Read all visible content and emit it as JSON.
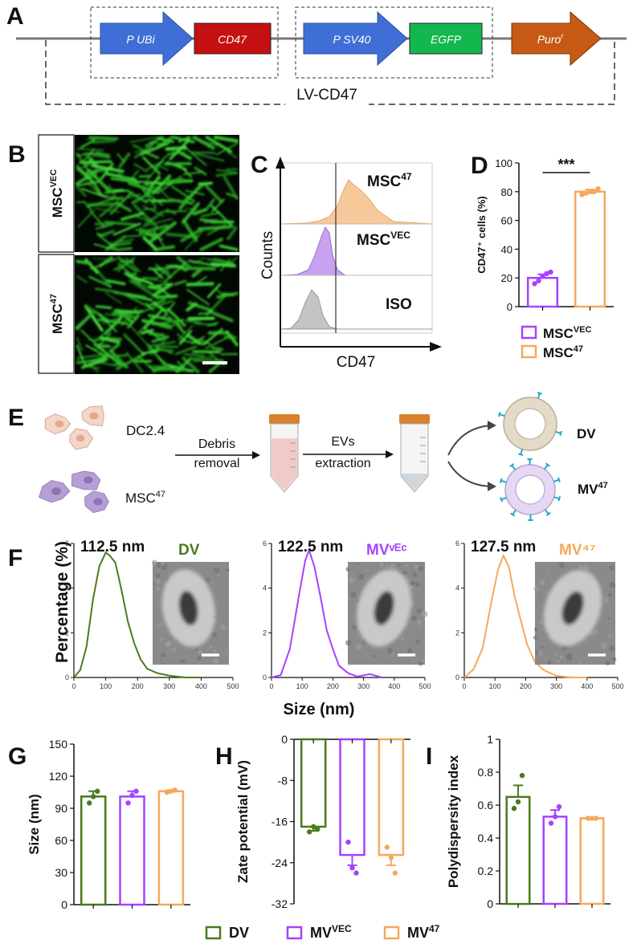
{
  "panel_labels": {
    "A": "A",
    "B": "B",
    "C": "C",
    "D": "D",
    "E": "E",
    "F": "F",
    "G": "G",
    "H": "H",
    "I": "I"
  },
  "colors": {
    "promoter": "#3f6fd6",
    "cd47": "#c41010",
    "egfp": "#12b84e",
    "puro": "#c65a14",
    "dv": "#4a7a1e",
    "mvvec": "#a642ff",
    "mv47": "#f5a85a",
    "fluor": "#38d02e",
    "dc_cell": "#f2cfc0",
    "msc_cell": "#b59fd4"
  },
  "panel_a": {
    "promoter1": "P UBi",
    "gene1": "CD47",
    "promoter2": "P SV40",
    "gene2": "EGFP",
    "resistance": "Puro",
    "resistance_sup": "r",
    "vector": "LV-CD47"
  },
  "panel_b": {
    "label_top_base": "MSC",
    "label_top_sup": "VEC",
    "label_bottom_base": "MSC",
    "label_bottom_sup": "47"
  },
  "panel_c": {
    "ylabel": "Counts",
    "xlabel": "CD47",
    "rows": [
      {
        "name": "msc47",
        "label_base": "MSC",
        "label_sup": "47"
      },
      {
        "name": "mscvec",
        "label_base": "MSC",
        "label_sup": "VEC"
      },
      {
        "name": "iso",
        "label_base": "ISO",
        "label_sup": ""
      }
    ]
  },
  "panel_e": {
    "donor1": "DC2.4",
    "donor2_base": "MSC",
    "donor2_sup": "47",
    "step1_line1": "Debris",
    "step1_line2": "removal",
    "step2_line1": "EVs",
    "step2_line2": "extraction",
    "product1": "DV",
    "product2_base": "MV",
    "product2_sup": "47"
  },
  "panel_f": {
    "ylabel": "Percentage (%)",
    "xlabel": "Size (nm)"
  },
  "legend_d": [
    {
      "base": "MSC",
      "sup": "VEC",
      "color": "#a642ff"
    },
    {
      "base": "MSC",
      "sup": "47",
      "color": "#f5a85a"
    }
  ],
  "legend_bottom": [
    {
      "base": "DV",
      "sup": "",
      "color": "#4a7a1e"
    },
    {
      "base": "MV",
      "sup": "VEC",
      "color": "#a642ff"
    },
    {
      "base": "MV",
      "sup": "47",
      "color": "#f5a85a"
    }
  ],
  "chart_data": [
    {
      "id": "D",
      "type": "bar",
      "ylabel": "CD47⁺ cells (%)",
      "ylim": [
        0,
        100
      ],
      "yticks": [
        0,
        20,
        40,
        60,
        80,
        100
      ],
      "categories": [
        "MSCᵛᴱᶜ",
        "MSC⁴⁷"
      ],
      "values": [
        20,
        80
      ],
      "errors": [
        2.5,
        1.5
      ],
      "points": [
        [
          16,
          18,
          21,
          23,
          24
        ],
        [
          78,
          79,
          80,
          80,
          82
        ]
      ],
      "colors": [
        "#a642ff",
        "#f5a85a"
      ],
      "significance": "***"
    },
    {
      "id": "F-DV",
      "type": "line",
      "title": "DV",
      "annotation": "112.5 nm",
      "xlim": [
        0,
        500
      ],
      "xticks": [
        0,
        100,
        200,
        300,
        400,
        500
      ],
      "ylim": [
        0,
        6
      ],
      "yticks": [
        0,
        2,
        4,
        6
      ],
      "x": [
        0,
        20,
        40,
        60,
        80,
        100,
        112.5,
        130,
        150,
        170,
        190,
        210,
        230,
        260,
        300,
        350,
        400
      ],
      "y": [
        0,
        0.3,
        1.4,
        3.4,
        5.0,
        5.5,
        5.5,
        5.2,
        4.0,
        2.6,
        1.5,
        0.8,
        0.4,
        0.15,
        0.05,
        0.02,
        0
      ],
      "color": "#4a7a1e"
    },
    {
      "id": "F-MVVEC",
      "type": "line",
      "title": "MVᵛᴱᶜ",
      "annotation": "122.5 nm",
      "xlim": [
        0,
        500
      ],
      "xticks": [
        0,
        100,
        200,
        300,
        400,
        500
      ],
      "ylim": [
        0,
        6
      ],
      "yticks": [
        0,
        2,
        4,
        6
      ],
      "x": [
        0,
        30,
        60,
        90,
        110,
        122.5,
        140,
        160,
        180,
        200,
        220,
        250,
        280,
        320,
        360
      ],
      "y": [
        0,
        0.2,
        1.2,
        3.8,
        5.3,
        5.7,
        5.0,
        3.6,
        2.2,
        1.2,
        0.6,
        0.3,
        0.15,
        0.05,
        0
      ],
      "color": "#a642ff"
    },
    {
      "id": "F-MV47",
      "type": "line",
      "title": "MV⁴⁷",
      "annotation": "127.5 nm",
      "xlim": [
        0,
        500
      ],
      "xticks": [
        0,
        100,
        200,
        300,
        400,
        500
      ],
      "ylim": [
        0,
        6
      ],
      "yticks": [
        0,
        2,
        4,
        6
      ],
      "x": [
        0,
        30,
        60,
        90,
        110,
        127.5,
        145,
        165,
        185,
        205,
        230,
        260,
        300,
        350,
        400
      ],
      "y": [
        0,
        0.3,
        1.3,
        3.4,
        4.8,
        5.4,
        4.9,
        3.7,
        2.4,
        1.4,
        0.7,
        0.3,
        0.1,
        0.04,
        0
      ],
      "color": "#f5a85a"
    },
    {
      "id": "G",
      "type": "bar",
      "ylabel": "Size (nm)",
      "ylim": [
        0,
        150
      ],
      "yticks": [
        0,
        30,
        60,
        90,
        120,
        150
      ],
      "categories": [
        "DV",
        "MVᵛᴱᶜ",
        "MV⁴⁷"
      ],
      "values": [
        101,
        101,
        106
      ],
      "errors": [
        5,
        5,
        1
      ],
      "points": [
        [
          95,
          101,
          106
        ],
        [
          95,
          102,
          106
        ],
        [
          105,
          106,
          107
        ]
      ],
      "colors": [
        "#4a7a1e",
        "#a642ff",
        "#f5a85a"
      ]
    },
    {
      "id": "H",
      "type": "bar",
      "ylabel": "Zate potential (mV)",
      "ylim": [
        -32,
        0
      ],
      "yticks": [
        0,
        -8,
        -16,
        -24,
        -32
      ],
      "categories": [
        "DV",
        "MVᵛᴱᶜ",
        "MV⁴⁷"
      ],
      "values": [
        -17,
        -22.5,
        -22.5
      ],
      "errors": [
        0.8,
        2.0,
        2.0
      ],
      "points": [
        [
          -18,
          -17,
          -17.5
        ],
        [
          -20,
          -25,
          -26
        ],
        [
          -21,
          -23,
          -26
        ]
      ],
      "colors": [
        "#4a7a1e",
        "#a642ff",
        "#f5a85a"
      ]
    },
    {
      "id": "I",
      "type": "bar",
      "ylabel": "Polydispersity index",
      "ylim": [
        0,
        1.0
      ],
      "yticks": [
        0,
        0.2,
        0.4,
        0.6,
        0.8,
        1.0
      ],
      "categories": [
        "DV",
        "MVᵛᴱᶜ",
        "MV⁴⁷"
      ],
      "values": [
        0.65,
        0.53,
        0.52
      ],
      "errors": [
        0.07,
        0.04,
        0.004
      ],
      "points": [
        [
          0.58,
          0.62,
          0.78
        ],
        [
          0.49,
          0.53,
          0.59
        ],
        [
          0.52,
          0.52,
          0.52
        ]
      ],
      "colors": [
        "#4a7a1e",
        "#a642ff",
        "#f5a85a"
      ]
    }
  ]
}
